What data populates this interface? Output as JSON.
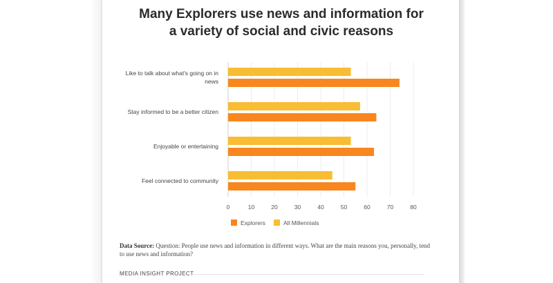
{
  "title_lines": [
    "Many Explorers use news and information for",
    "a variety of social and civic reasons"
  ],
  "chart_data": {
    "type": "bar",
    "orientation": "horizontal",
    "title": "Many Explorers use news and information for a variety of social and civic reasons",
    "categories": [
      [
        "Like to talk about what's going on in",
        "news"
      ],
      [
        "Stay informed to be a better citizen"
      ],
      [
        "Enjoyable or entertaining"
      ],
      [
        "Feel connected to community"
      ]
    ],
    "series": [
      {
        "name": "All Millennials",
        "color": "#f8bd32",
        "values": [
          53,
          57,
          53,
          45
        ]
      },
      {
        "name": "Explorers",
        "color": "#f7871e",
        "values": [
          74,
          64,
          63,
          55
        ]
      }
    ],
    "xlim": [
      0,
      80
    ],
    "xticks": [
      0,
      10,
      20,
      30,
      40,
      50,
      60,
      70,
      80
    ],
    "legend": [
      {
        "name": "Explorers",
        "color": "#f7871e"
      },
      {
        "name": "All Millennials",
        "color": "#f8bd32"
      }
    ],
    "legend_position": "bottom-center"
  },
  "source": {
    "label": "Data Source:",
    "text": "Question: People use news and information in different ways. What are the main reasons you, personally, tend to use news and information?"
  },
  "footer": "MEDIA INSIGHT PROJECT"
}
